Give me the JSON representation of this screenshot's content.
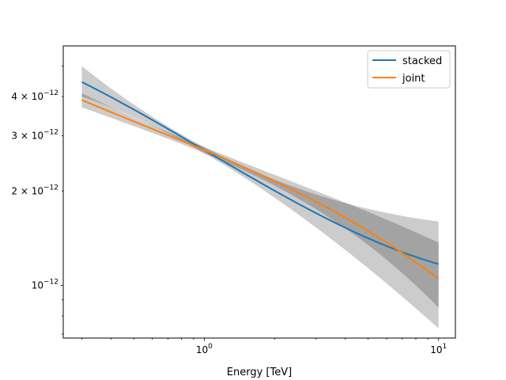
{
  "chart_data": {
    "type": "line",
    "title": "",
    "xlabel": "Energy [TeV]",
    "ylabel": "",
    "xscale": "log",
    "yscale": "log",
    "xlim": [
      0.25,
      11.8
    ],
    "ylim": [
      6.8e-13,
      5.8e-12
    ],
    "x_major_ticks": [
      {
        "value": 1,
        "base": "10",
        "exp": "0"
      },
      {
        "value": 10,
        "base": "10",
        "exp": "1"
      }
    ],
    "y_labeled_ticks": [
      {
        "value": 1e-12,
        "mant": "",
        "base": "10",
        "exp": "−12"
      },
      {
        "value": 2e-12,
        "mant": "2 × ",
        "base": "10",
        "exp": "−12"
      },
      {
        "value": 3e-12,
        "mant": "3 × ",
        "base": "10",
        "exp": "−12"
      },
      {
        "value": 4e-12,
        "mant": "4 × ",
        "base": "10",
        "exp": "−12"
      }
    ],
    "y_minor_ticks": [
      7e-13,
      8e-13,
      9e-13,
      5e-12
    ],
    "legend": {
      "position": "top-right",
      "entries": [
        "stacked",
        "joint"
      ]
    },
    "series": [
      {
        "name": "stacked",
        "color": "#1f77b4",
        "x": [
          0.3,
          1.0,
          3.0,
          10.0
        ],
        "y": [
          4.45e-12,
          2.7e-12,
          1.7e-12,
          1.17e-12
        ],
        "band_lower": [
          4e-12,
          2.64e-12,
          1.53e-12,
          7.3e-13
        ],
        "band_upper": [
          5e-12,
          2.76e-12,
          1.95e-12,
          1.6e-12
        ],
        "band_color": "#000000",
        "band_opacity": 0.2
      },
      {
        "name": "joint",
        "color": "#ff7f0e",
        "x": [
          0.3,
          1.0,
          3.0,
          10.0
        ],
        "y": [
          3.9e-12,
          2.7e-12,
          1.85e-12,
          1.05e-12
        ],
        "band_lower": [
          3.7e-12,
          2.64e-12,
          1.75e-12,
          8.5e-13
        ],
        "band_upper": [
          4.1e-12,
          2.76e-12,
          2e-12,
          1.37e-12
        ],
        "band_color": "#000000",
        "band_opacity": 0.2
      }
    ]
  }
}
